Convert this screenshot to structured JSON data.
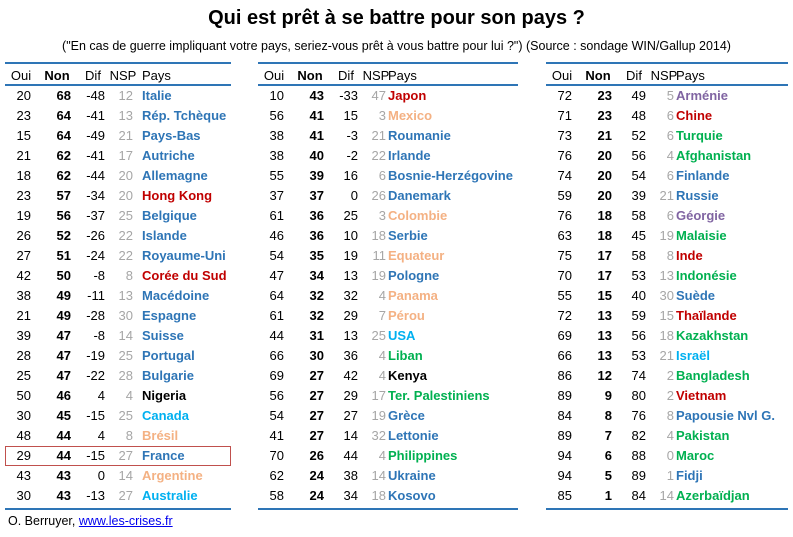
{
  "title": "Qui est prêt à se battre pour son pays ?",
  "subtitle": "(\"En cas de guerre impliquant votre pays, seriez-vous prêt à vous battre pour lui ?\") (Source : sondage WIN/Gallup 2014)",
  "headers": {
    "oui": "Oui",
    "non": "Non",
    "dif": "Dif",
    "nsp": "NSP",
    "pays": "Pays"
  },
  "colors": {
    "blue": "#2e75b6",
    "red": "#c00000",
    "orange": "#f4b183",
    "green": "#00b050",
    "purple": "#8064a2",
    "black": "#000000",
    "lightblue": "#00b0f0",
    "grey": "#a6a6a6",
    "highlight": "#c0504d"
  },
  "columns": [
    [
      {
        "oui": "20",
        "non": "68",
        "dif": "-48",
        "nsp": "12",
        "pays": "Italie",
        "color": "blue"
      },
      {
        "oui": "23",
        "non": "64",
        "dif": "-41",
        "nsp": "13",
        "pays": "Rép. Tchèque",
        "color": "blue"
      },
      {
        "oui": "15",
        "non": "64",
        "dif": "-49",
        "nsp": "21",
        "pays": "Pays-Bas",
        "color": "blue"
      },
      {
        "oui": "21",
        "non": "62",
        "dif": "-41",
        "nsp": "17",
        "pays": "Autriche",
        "color": "blue"
      },
      {
        "oui": "18",
        "non": "62",
        "dif": "-44",
        "nsp": "20",
        "pays": "Allemagne",
        "color": "blue"
      },
      {
        "oui": "23",
        "non": "57",
        "dif": "-34",
        "nsp": "20",
        "pays": "Hong Kong",
        "color": "red"
      },
      {
        "oui": "19",
        "non": "56",
        "dif": "-37",
        "nsp": "25",
        "pays": "Belgique",
        "color": "blue"
      },
      {
        "oui": "26",
        "non": "52",
        "dif": "-26",
        "nsp": "22",
        "pays": "Islande",
        "color": "blue"
      },
      {
        "oui": "27",
        "non": "51",
        "dif": "-24",
        "nsp": "22",
        "pays": "Royaume-Uni",
        "color": "blue"
      },
      {
        "oui": "42",
        "non": "50",
        "dif": "-8",
        "nsp": "8",
        "pays": "Corée du Sud",
        "color": "red"
      },
      {
        "oui": "38",
        "non": "49",
        "dif": "-11",
        "nsp": "13",
        "pays": "Macédoine",
        "color": "blue"
      },
      {
        "oui": "21",
        "non": "49",
        "dif": "-28",
        "nsp": "30",
        "pays": "Espagne",
        "color": "blue"
      },
      {
        "oui": "39",
        "non": "47",
        "dif": "-8",
        "nsp": "14",
        "pays": "Suisse",
        "color": "blue"
      },
      {
        "oui": "28",
        "non": "47",
        "dif": "-19",
        "nsp": "25",
        "pays": "Portugal",
        "color": "blue"
      },
      {
        "oui": "25",
        "non": "47",
        "dif": "-22",
        "nsp": "28",
        "pays": "Bulgarie",
        "color": "blue"
      },
      {
        "oui": "50",
        "non": "46",
        "dif": "4",
        "nsp": "4",
        "pays": "Nigeria",
        "color": "black"
      },
      {
        "oui": "30",
        "non": "45",
        "dif": "-15",
        "nsp": "25",
        "pays": "Canada",
        "color": "lightblue"
      },
      {
        "oui": "48",
        "non": "44",
        "dif": "4",
        "nsp": "8",
        "pays": "Brésil",
        "color": "orange"
      },
      {
        "oui": "29",
        "non": "44",
        "dif": "-15",
        "nsp": "27",
        "pays": "France",
        "color": "blue",
        "highlight": true
      },
      {
        "oui": "43",
        "non": "43",
        "dif": "0",
        "nsp": "14",
        "pays": "Argentine",
        "color": "orange"
      },
      {
        "oui": "30",
        "non": "43",
        "dif": "-13",
        "nsp": "27",
        "pays": "Australie",
        "color": "lightblue"
      }
    ],
    [
      {
        "oui": "10",
        "non": "43",
        "dif": "-33",
        "nsp": "47",
        "pays": "Japon",
        "color": "red"
      },
      {
        "oui": "56",
        "non": "41",
        "dif": "15",
        "nsp": "3",
        "pays": "Mexico",
        "color": "orange"
      },
      {
        "oui": "38",
        "non": "41",
        "dif": "-3",
        "nsp": "21",
        "pays": "Roumanie",
        "color": "blue"
      },
      {
        "oui": "38",
        "non": "40",
        "dif": "-2",
        "nsp": "22",
        "pays": "Irlande",
        "color": "blue"
      },
      {
        "oui": "55",
        "non": "39",
        "dif": "16",
        "nsp": "6",
        "pays": "Bosnie-Herzégovine",
        "color": "blue"
      },
      {
        "oui": "37",
        "non": "37",
        "dif": "0",
        "nsp": "26",
        "pays": "Danemark",
        "color": "blue"
      },
      {
        "oui": "61",
        "non": "36",
        "dif": "25",
        "nsp": "3",
        "pays": "Colombie",
        "color": "orange"
      },
      {
        "oui": "46",
        "non": "36",
        "dif": "10",
        "nsp": "18",
        "pays": "Serbie",
        "color": "blue"
      },
      {
        "oui": "54",
        "non": "35",
        "dif": "19",
        "nsp": "11",
        "pays": "Equateur",
        "color": "orange"
      },
      {
        "oui": "47",
        "non": "34",
        "dif": "13",
        "nsp": "19",
        "pays": "Pologne",
        "color": "blue"
      },
      {
        "oui": "64",
        "non": "32",
        "dif": "32",
        "nsp": "4",
        "pays": "Panama",
        "color": "orange"
      },
      {
        "oui": "61",
        "non": "32",
        "dif": "29",
        "nsp": "7",
        "pays": "Pérou",
        "color": "orange"
      },
      {
        "oui": "44",
        "non": "31",
        "dif": "13",
        "nsp": "25",
        "pays": "USA",
        "color": "lightblue"
      },
      {
        "oui": "66",
        "non": "30",
        "dif": "36",
        "nsp": "4",
        "pays": "Liban",
        "color": "green"
      },
      {
        "oui": "69",
        "non": "27",
        "dif": "42",
        "nsp": "4",
        "pays": "Kenya",
        "color": "black"
      },
      {
        "oui": "56",
        "non": "27",
        "dif": "29",
        "nsp": "17",
        "pays": "Ter. Palestiniens",
        "color": "green"
      },
      {
        "oui": "54",
        "non": "27",
        "dif": "27",
        "nsp": "19",
        "pays": "Grèce",
        "color": "blue"
      },
      {
        "oui": "41",
        "non": "27",
        "dif": "14",
        "nsp": "32",
        "pays": "Lettonie",
        "color": "blue"
      },
      {
        "oui": "70",
        "non": "26",
        "dif": "44",
        "nsp": "4",
        "pays": "Philippines",
        "color": "green"
      },
      {
        "oui": "62",
        "non": "24",
        "dif": "38",
        "nsp": "14",
        "pays": "Ukraine",
        "color": "blue"
      },
      {
        "oui": "58",
        "non": "24",
        "dif": "34",
        "nsp": "18",
        "pays": "Kosovo",
        "color": "blue"
      }
    ],
    [
      {
        "oui": "72",
        "non": "23",
        "dif": "49",
        "nsp": "5",
        "pays": "Arménie",
        "color": "purple"
      },
      {
        "oui": "71",
        "non": "23",
        "dif": "48",
        "nsp": "6",
        "pays": "Chine",
        "color": "red"
      },
      {
        "oui": "73",
        "non": "21",
        "dif": "52",
        "nsp": "6",
        "pays": "Turquie",
        "color": "green"
      },
      {
        "oui": "76",
        "non": "20",
        "dif": "56",
        "nsp": "4",
        "pays": "Afghanistan",
        "color": "green"
      },
      {
        "oui": "74",
        "non": "20",
        "dif": "54",
        "nsp": "6",
        "pays": "Finlande",
        "color": "blue"
      },
      {
        "oui": "59",
        "non": "20",
        "dif": "39",
        "nsp": "21",
        "pays": "Russie",
        "color": "blue"
      },
      {
        "oui": "76",
        "non": "18",
        "dif": "58",
        "nsp": "6",
        "pays": "Géorgie",
        "color": "purple"
      },
      {
        "oui": "63",
        "non": "18",
        "dif": "45",
        "nsp": "19",
        "pays": "Malaisie",
        "color": "green"
      },
      {
        "oui": "75",
        "non": "17",
        "dif": "58",
        "nsp": "8",
        "pays": "Inde",
        "color": "red"
      },
      {
        "oui": "70",
        "non": "17",
        "dif": "53",
        "nsp": "13",
        "pays": "Indonésie",
        "color": "green"
      },
      {
        "oui": "55",
        "non": "15",
        "dif": "40",
        "nsp": "30",
        "pays": "Suède",
        "color": "blue"
      },
      {
        "oui": "72",
        "non": "13",
        "dif": "59",
        "nsp": "15",
        "pays": "Thaïlande",
        "color": "red"
      },
      {
        "oui": "69",
        "non": "13",
        "dif": "56",
        "nsp": "18",
        "pays": "Kazakhstan",
        "color": "green"
      },
      {
        "oui": "66",
        "non": "13",
        "dif": "53",
        "nsp": "21",
        "pays": "Israël",
        "color": "lightblue"
      },
      {
        "oui": "86",
        "non": "12",
        "dif": "74",
        "nsp": "2",
        "pays": "Bangladesh",
        "color": "green"
      },
      {
        "oui": "89",
        "non": "9",
        "dif": "80",
        "nsp": "2",
        "pays": "Vietnam",
        "color": "red"
      },
      {
        "oui": "84",
        "non": "8",
        "dif": "76",
        "nsp": "8",
        "pays": "Papousie Nvl G.",
        "color": "blue"
      },
      {
        "oui": "89",
        "non": "7",
        "dif": "82",
        "nsp": "4",
        "pays": "Pakistan",
        "color": "green"
      },
      {
        "oui": "94",
        "non": "6",
        "dif": "88",
        "nsp": "0",
        "pays": "Maroc",
        "color": "green"
      },
      {
        "oui": "94",
        "non": "5",
        "dif": "89",
        "nsp": "1",
        "pays": "Fidji",
        "color": "blue"
      },
      {
        "oui": "85",
        "non": "1",
        "dif": "84",
        "nsp": "14",
        "pays": "Azerbaïdjan",
        "color": "green"
      }
    ]
  ],
  "footer": {
    "author": "O. Berruyer, ",
    "link": "www.les-crises.fr"
  }
}
